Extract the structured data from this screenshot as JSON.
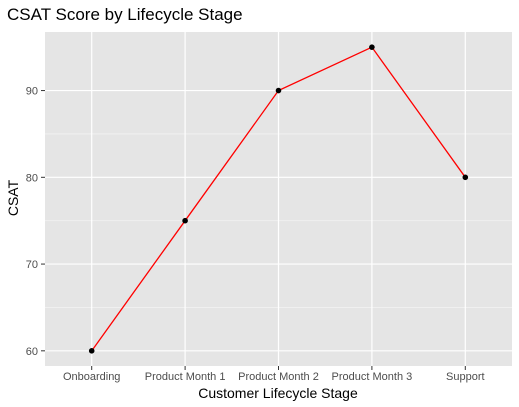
{
  "chart_data": {
    "type": "line",
    "title": "CSAT Score by Lifecycle Stage",
    "xlabel": "Customer Lifecycle Stage",
    "ylabel": "CSAT",
    "categories": [
      "Onboarding",
      "Product Month 1",
      "Product Month 2",
      "Product Month 3",
      "Support"
    ],
    "series": [
      {
        "values": [
          60,
          75,
          90,
          95,
          80
        ]
      }
    ],
    "ylim": [
      58.25,
      96.75
    ],
    "yticks": [
      60,
      70,
      80,
      90
    ],
    "grid": true,
    "legend": "none",
    "colors": {
      "line": "#ff0000",
      "points": "#000000",
      "panel": "#e5e5e5",
      "grid_major": "#ffffff",
      "grid_minor": "#f2f2f2",
      "ticks": "#333333"
    }
  }
}
